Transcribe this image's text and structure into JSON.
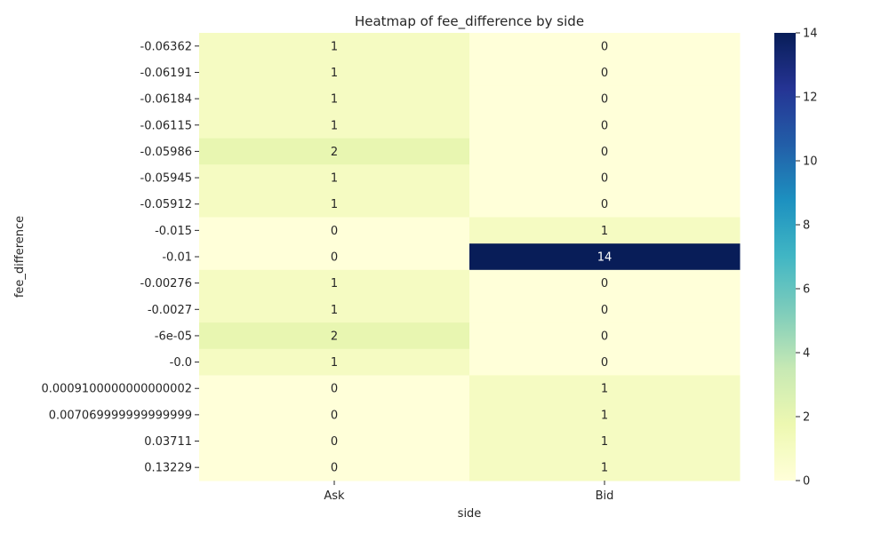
{
  "chart_data": {
    "type": "heatmap",
    "title": "Heatmap of fee_difference by side",
    "xlabel": "side",
    "ylabel": "fee_difference",
    "columns": [
      "Ask",
      "Bid"
    ],
    "rows": [
      "-0.06362",
      "-0.06191",
      "-0.06184",
      "-0.06115",
      "-0.05986",
      "-0.05945",
      "-0.05912",
      "-0.015",
      "-0.01",
      "-0.00276",
      "-0.0027",
      "-6e-05",
      "-0.0",
      "0.0009100000000000002",
      "0.007069999999999999",
      "0.03711",
      "0.13229"
    ],
    "values": [
      [
        1,
        0
      ],
      [
        1,
        0
      ],
      [
        1,
        0
      ],
      [
        1,
        0
      ],
      [
        2,
        0
      ],
      [
        1,
        0
      ],
      [
        1,
        0
      ],
      [
        0,
        1
      ],
      [
        0,
        14
      ],
      [
        1,
        0
      ],
      [
        1,
        0
      ],
      [
        2,
        0
      ],
      [
        1,
        0
      ],
      [
        0,
        1
      ],
      [
        0,
        1
      ],
      [
        0,
        1
      ],
      [
        0,
        1
      ]
    ],
    "colorbar": {
      "min": 0,
      "max": 14,
      "ticks": [
        0,
        2,
        4,
        6,
        8,
        10,
        12,
        14
      ],
      "colormap": "YlGnBu"
    }
  }
}
